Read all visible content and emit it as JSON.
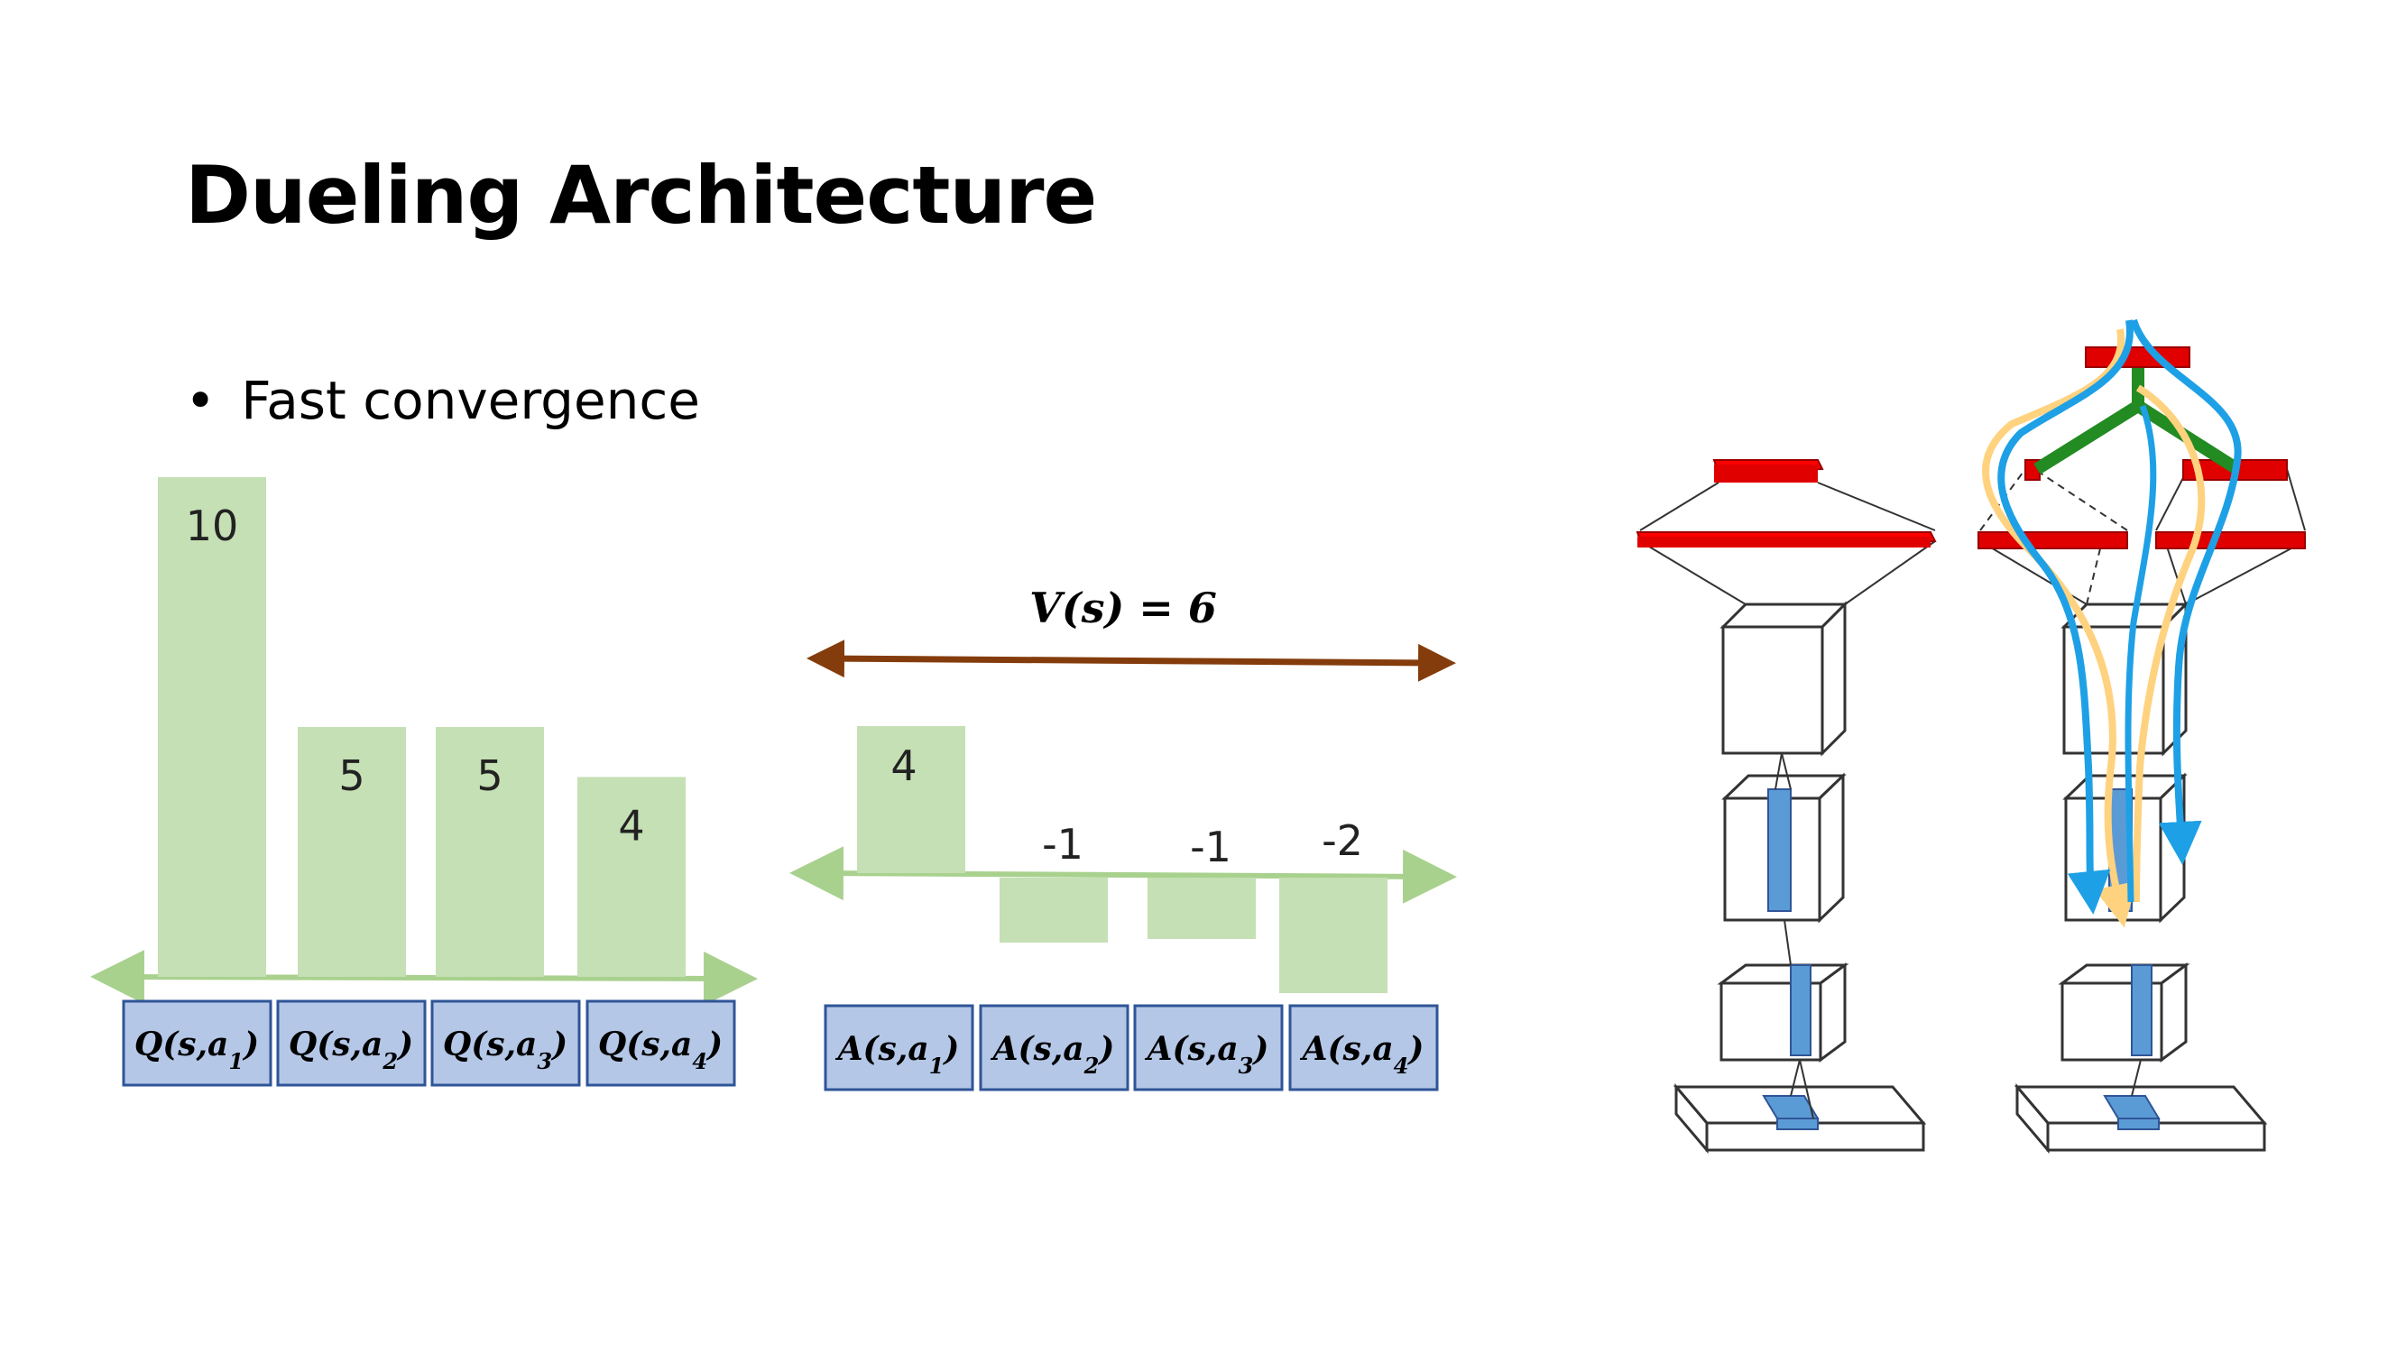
{
  "slide": {
    "title": "Dueling Architecture",
    "bullets": [
      "Fast convergence"
    ]
  },
  "q_chart": {
    "values": [
      10,
      5,
      5,
      4
    ],
    "labels": [
      "Q(s,a1)",
      "Q(s,a2)",
      "Q(s,a3)",
      "Q(s,a4)"
    ],
    "bar_color": "#c5e0b4",
    "axis_color": "#a9d18e"
  },
  "a_chart": {
    "values": [
      4,
      -1,
      -1,
      -2
    ],
    "labels": [
      "A(s,a1)",
      "A(s,a2)",
      "A(s,a3)",
      "A(s,a4)"
    ],
    "bar_color": "#c5e0b4",
    "axis_color": "#a9d18e"
  },
  "value_annotation": {
    "text": "V(s) = 6",
    "arrow_color": "#843c0c"
  },
  "label_box": {
    "fill": "#b4c7e7",
    "stroke": "#2f5597"
  },
  "network_colors": {
    "fc_layer": "#ff0000",
    "conv_filter": "#5b9bd5",
    "stream_green": "#228b22",
    "path_blue": "#1ea0e6",
    "path_yellow": "#ffd27f"
  }
}
